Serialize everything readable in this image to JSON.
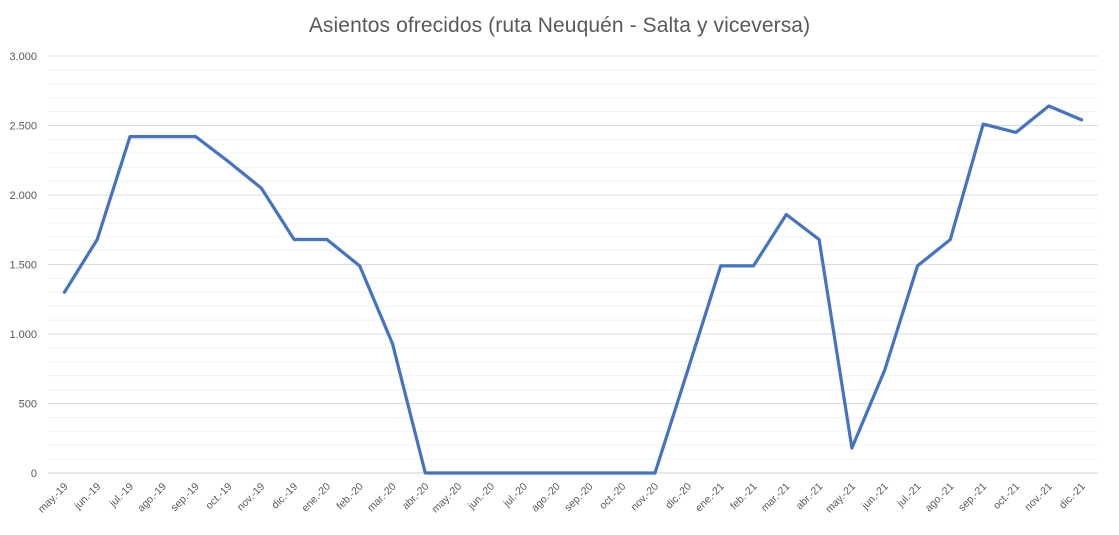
{
  "chart_data": {
    "type": "line",
    "title": "Asientos ofrecidos (ruta Neuquén - Salta y viceversa)",
    "xlabel": "",
    "ylabel": "",
    "ylim": [
      0,
      3000
    ],
    "yticks": [
      0,
      500,
      1000,
      1500,
      2000,
      2500,
      3000
    ],
    "ytick_labels": [
      "0",
      "500",
      "1.000",
      "1.500",
      "2.000",
      "2.500",
      "3.000"
    ],
    "grid": true,
    "legend": "none",
    "categories": [
      "may.-19",
      "jun.-19",
      "jul.-19",
      "ago.-19",
      "sep.-19",
      "oct.-19",
      "nov.-19",
      "dic.-19",
      "ene.-20",
      "feb.-20",
      "mar.-20",
      "abr.-20",
      "may.-20",
      "jun.-20",
      "jul.-20",
      "ago.-20",
      "sep.-20",
      "oct.-20",
      "nov.-20",
      "dic.-20",
      "ene.-21",
      "feb.-21",
      "mar.-21",
      "abr.-21",
      "may.-21",
      "jun.-21",
      "jul.-21",
      "ago.-21",
      "sep.-21",
      "oct.-21",
      "nov.-21",
      "dic.-21"
    ],
    "series": [
      {
        "name": "",
        "color": "#4472c4",
        "values": [
          1300,
          1680,
          2420,
          2420,
          2420,
          2240,
          2050,
          1680,
          1680,
          1490,
          930,
          0,
          0,
          0,
          0,
          0,
          0,
          0,
          0,
          740,
          1490,
          1490,
          1860,
          1680,
          180,
          740,
          1490,
          1680,
          2510,
          2450,
          2640,
          2540
        ]
      }
    ]
  }
}
